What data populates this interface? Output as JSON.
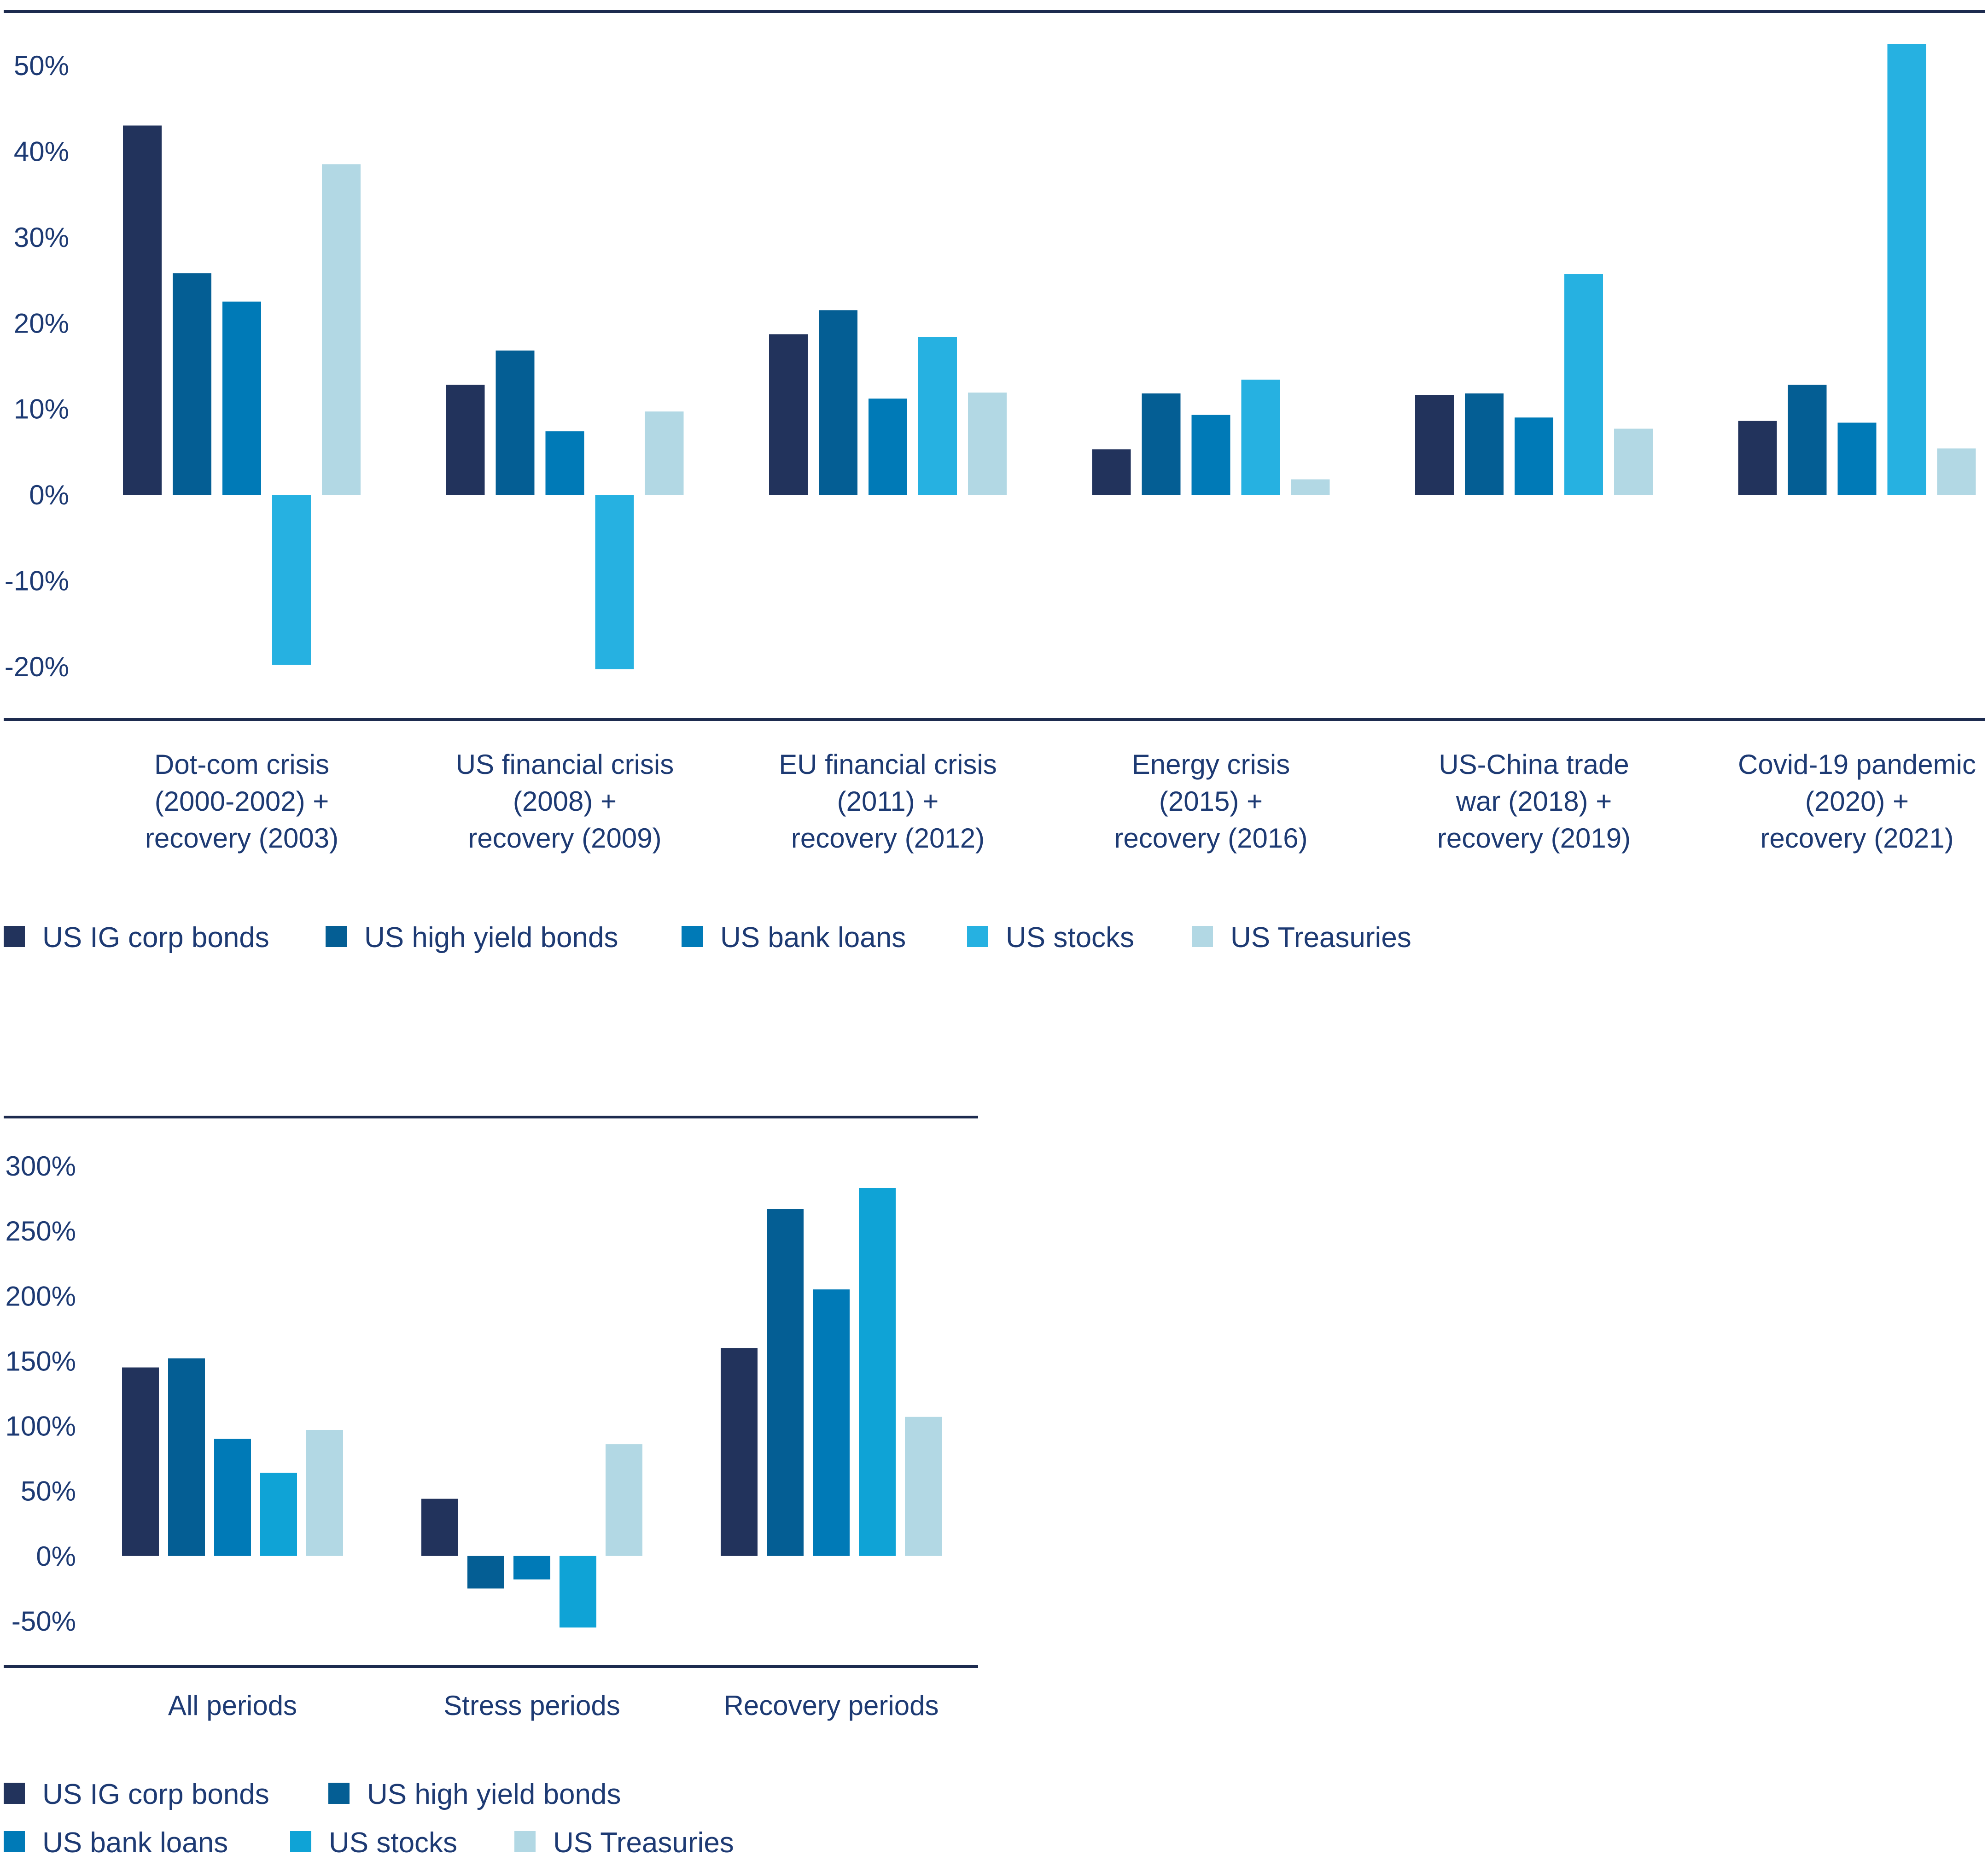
{
  "chart_data": [
    {
      "type": "bar",
      "categories": [
        [
          "Dot-com crisis",
          "(2000-2002) +",
          "recovery (2003)"
        ],
        [
          "US financial crisis",
          "(2008) +",
          "recovery (2009)"
        ],
        [
          "EU financial crisis",
          "(2011) +",
          "recovery (2012)"
        ],
        [
          "Energy crisis",
          "(2015) +",
          "recovery (2016)"
        ],
        [
          "US-China trade",
          "war (2018) +",
          "recovery (2019)"
        ],
        [
          "Covid-19 pandemic",
          "(2020) +",
          "recovery (2021)"
        ]
      ],
      "series": [
        {
          "name": "US IG corp bonds",
          "color": "#22335c",
          "values": [
            43,
            12.8,
            18.7,
            5.3,
            11.6,
            8.6
          ]
        },
        {
          "name": "US high yield bonds",
          "color": "#045e94",
          "values": [
            25.8,
            16.8,
            21.5,
            11.8,
            11.8,
            12.8
          ]
        },
        {
          "name": "US bank loans",
          "color": "#007ab7",
          "values": [
            22.5,
            7.4,
            11.2,
            9.3,
            9.0,
            8.4
          ]
        },
        {
          "name": "US stocks",
          "color": "#26b1e1",
          "values": [
            -19.8,
            -20.3,
            18.4,
            13.4,
            25.7,
            52.5
          ]
        },
        {
          "name": "US Treasuries",
          "color": "#b2d8e4",
          "values": [
            38.5,
            9.7,
            11.9,
            1.8,
            7.7,
            5.4
          ]
        }
      ],
      "yticks": [
        "50%",
        "40%",
        "30%",
        "20%",
        "10%",
        "0%",
        "-10%",
        "-20%"
      ],
      "ylim": [
        -25,
        55
      ],
      "grid": false,
      "legend_position": "bottom"
    },
    {
      "type": "bar",
      "categories": [
        [
          "All periods"
        ],
        [
          "Stress periods"
        ],
        [
          "Recovery periods"
        ]
      ],
      "series": [
        {
          "name": "US IG corp bonds",
          "color": "#22335c",
          "values": [
            145,
            44,
            160
          ]
        },
        {
          "name": "US high yield bonds",
          "color": "#045e94",
          "values": [
            152,
            -25,
            267
          ]
        },
        {
          "name": "US bank loans",
          "color": "#007ab7",
          "values": [
            90,
            -18,
            205
          ]
        },
        {
          "name": "US stocks",
          "color": "#0fa3d6",
          "values": [
            64,
            -55,
            283
          ]
        },
        {
          "name": "US Treasuries",
          "color": "#b2d8e4",
          "values": [
            97,
            86,
            107
          ]
        }
      ],
      "yticks": [
        "300%",
        "250%",
        "200%",
        "150%",
        "100%",
        "50%",
        "0%",
        "-50%"
      ],
      "ylim": [
        -80,
        330
      ],
      "grid": false,
      "legend_position": "bottom"
    }
  ]
}
